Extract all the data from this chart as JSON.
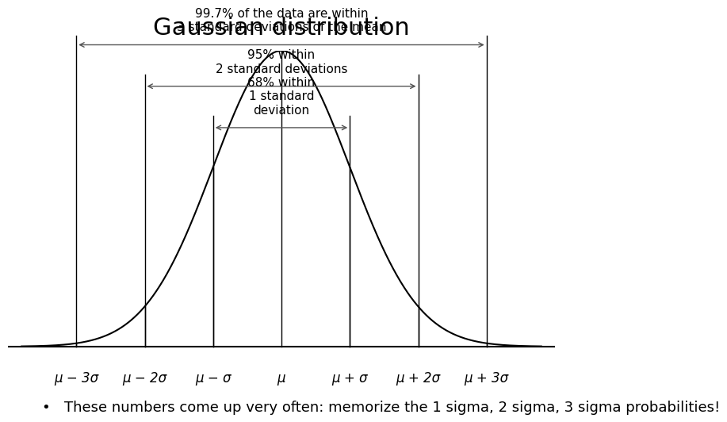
{
  "title": "Gaussian distribution",
  "title_fontsize": 22,
  "background_color": "#ffffff",
  "curve_color": "#000000",
  "line_color": "#000000",
  "annotation_color": "#555555",
  "xlabel_labels": [
    "μ − 3σ",
    "μ − 2σ",
    "μ − σ",
    "μ",
    "μ + σ",
    "μ + 2σ",
    "μ + 3σ"
  ],
  "sigma_positions": [
    -3,
    -2,
    -1,
    0,
    1,
    2,
    3
  ],
  "annotation_1sigma": "68% within\n1 standard\ndeviation",
  "annotation_2sigma": "95% within\n2 standard deviations",
  "annotation_3sigma": "99.7% of the data are within\n3 standard deviations of the mean",
  "footer_text": "These numbers come up very often: memorize the 1 sigma, 2 sigma, 3 sigma probabilities!",
  "footer_bullet": "•",
  "footer_fontsize": 13,
  "label_fontsize": 12,
  "annot_fontsize": 11
}
